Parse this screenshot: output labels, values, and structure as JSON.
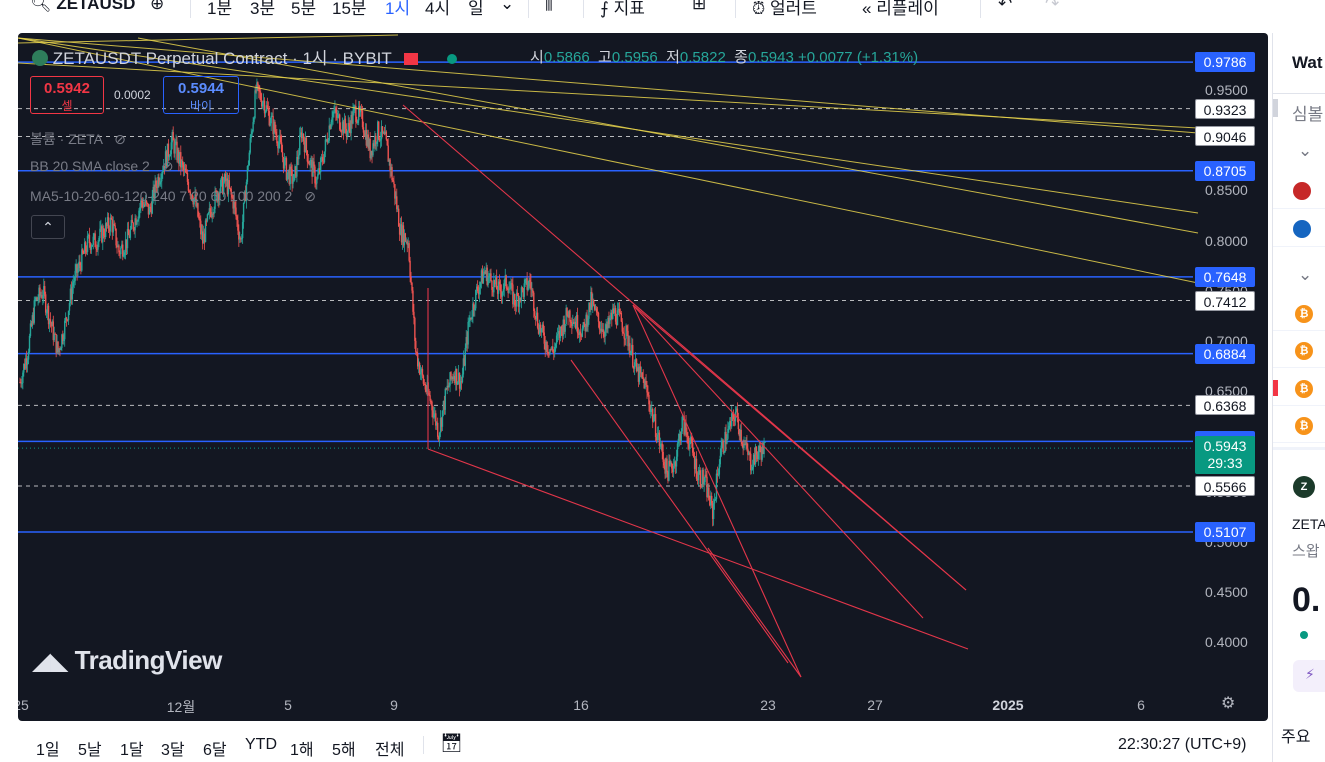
{
  "toolbar": {
    "symbol": "ZETAUSD",
    "intervals": [
      {
        "label": "1분",
        "active": false
      },
      {
        "label": "3분",
        "active": false
      },
      {
        "label": "5분",
        "active": false
      },
      {
        "label": "15분",
        "active": false
      },
      {
        "label": "1시",
        "active": true
      },
      {
        "label": "4시",
        "active": false
      },
      {
        "label": "일",
        "active": false
      }
    ],
    "indicators_label": "지표",
    "alert_label": "얼러트",
    "replay_label": "리플레이"
  },
  "legend": {
    "title": "ZETAUSDT Perpetual Contract · 1시 · BYBIT",
    "open_label": "시",
    "open": "0.5866",
    "high_label": "고",
    "high": "0.5956",
    "low_label": "저",
    "low": "0.5822",
    "close_label": "종",
    "close": "0.5943",
    "change": "+0.0077 (+1.31%)",
    "sell_price": "0.5942",
    "sell_label": "셀",
    "spread": "0.0002",
    "buy_price": "0.5944",
    "buy_label": "바이",
    "indicators": [
      "볼륨 · ZETA",
      "BB 20 SMA close 2",
      "MA5-10-20-60-120-240 7 20 60 100 200 2"
    ]
  },
  "chart_data": {
    "type": "candlestick",
    "symbol": "ZETAUSDT",
    "exchange": "BYBIT",
    "interval": "1시",
    "ylim": [
      0.38,
      0.99
    ],
    "y_ticks": [
      "0.4000",
      "0.4500",
      "0.5000",
      "0.5500",
      "0.6500",
      "0.7000",
      "0.7500",
      "0.8000",
      "0.8500",
      "0.9500"
    ],
    "x_ticks": [
      "25",
      "12월",
      "5",
      "9",
      "16",
      "23",
      "27",
      "2025",
      "6"
    ],
    "horizontal_levels": [
      {
        "value": 0.9786,
        "style": "solid",
        "color": "#2962ff"
      },
      {
        "value": 0.9323,
        "style": "dashed",
        "color": "#ffffff"
      },
      {
        "value": 0.9046,
        "style": "dashed",
        "color": "#ffffff"
      },
      {
        "value": 0.8705,
        "style": "solid",
        "color": "#2962ff"
      },
      {
        "value": 0.7648,
        "style": "solid",
        "color": "#2962ff"
      },
      {
        "value": 0.7412,
        "style": "dashed",
        "color": "#ffffff"
      },
      {
        "value": 0.6884,
        "style": "solid",
        "color": "#2962ff"
      },
      {
        "value": 0.6368,
        "style": "dashed",
        "color": "#ffffff"
      },
      {
        "value": 0.601,
        "style": "solid",
        "color": "#2962ff"
      },
      {
        "value": 0.5566,
        "style": "dashed",
        "color": "#ffffff"
      },
      {
        "value": 0.5107,
        "style": "solid",
        "color": "#2962ff"
      }
    ],
    "level_labels": [
      "0.9786",
      "0.9323",
      "0.9046",
      "0.8705",
      "0.7648",
      "0.7412",
      "0.6884",
      "0.6368",
      "0.6010",
      "0.5566",
      "0.5107"
    ],
    "last_price": "0.5943",
    "countdown": "29:33",
    "close_path": [
      0.66,
      0.69,
      0.74,
      0.75,
      0.72,
      0.69,
      0.72,
      0.76,
      0.78,
      0.8,
      0.8,
      0.81,
      0.82,
      0.79,
      0.8,
      0.82,
      0.84,
      0.83,
      0.86,
      0.88,
      0.9,
      0.88,
      0.86,
      0.84,
      0.8,
      0.83,
      0.85,
      0.86,
      0.84,
      0.8,
      0.88,
      0.95,
      0.94,
      0.92,
      0.9,
      0.87,
      0.86,
      0.91,
      0.88,
      0.86,
      0.89,
      0.93,
      0.92,
      0.91,
      0.93,
      0.92,
      0.89,
      0.91,
      0.9,
      0.86,
      0.81,
      0.8,
      0.69,
      0.66,
      0.64,
      0.61,
      0.65,
      0.67,
      0.66,
      0.72,
      0.75,
      0.77,
      0.76,
      0.75,
      0.76,
      0.74,
      0.75,
      0.76,
      0.72,
      0.7,
      0.69,
      0.71,
      0.73,
      0.72,
      0.71,
      0.74,
      0.72,
      0.71,
      0.73,
      0.72,
      0.7,
      0.67,
      0.66,
      0.63,
      0.6,
      0.57,
      0.58,
      0.62,
      0.6,
      0.57,
      0.56,
      0.53,
      0.59,
      0.61,
      0.63,
      0.6,
      0.58,
      0.59,
      0.5943
    ]
  },
  "watermark": "TradingView",
  "bottom": {
    "ranges": [
      "1일",
      "5날",
      "1달",
      "3달",
      "6달",
      "YTD",
      "1해",
      "5해",
      "전체"
    ],
    "clock": "22:30:27 (UTC+9)"
  },
  "right_panel": {
    "header": "Wat",
    "symbol_col": "심볼",
    "ticker": "ZETA",
    "ticker_sub": "스왑",
    "big_value": "0.",
    "section": "주요"
  }
}
